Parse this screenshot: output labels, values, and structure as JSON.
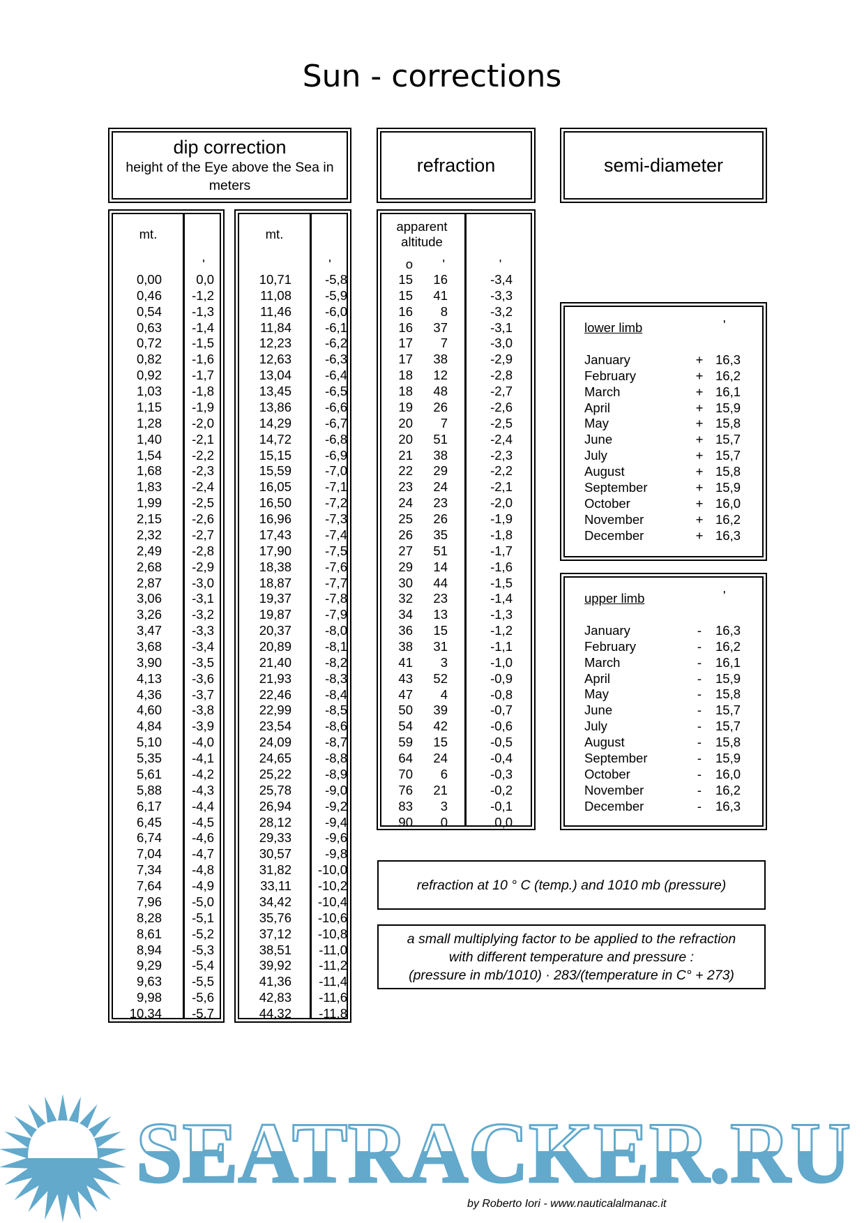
{
  "title": "Sun - corrections",
  "dip": {
    "heading": "dip correction",
    "subheading": "height of the Eye above the Sea in meters",
    "col_mt": "mt.",
    "col_min": "'",
    "left": {
      "mt": [
        "0,00",
        "0,46",
        "0,54",
        "0,63",
        "0,72",
        "0,82",
        "0,92",
        "1,03",
        "1,15",
        "1,28",
        "1,40",
        "1,54",
        "1,68",
        "1,83",
        "1,99",
        "2,15",
        "2,32",
        "2,49",
        "2,68",
        "2,87",
        "3,06",
        "3,26",
        "3,47",
        "3,68",
        "3,90",
        "4,13",
        "4,36",
        "4,60",
        "4,84",
        "5,10",
        "5,35",
        "5,61",
        "5,88",
        "6,17",
        "6,45",
        "6,74",
        "7,04",
        "7,34",
        "7,64",
        "7,96",
        "8,28",
        "8,61",
        "8,94",
        "9,29",
        "9,63",
        "9,98",
        "10,34"
      ],
      "corr": [
        "0,0",
        "-1,2",
        "-1,3",
        "-1,4",
        "-1,5",
        "-1,6",
        "-1,7",
        "-1,8",
        "-1,9",
        "-2,0",
        "-2,1",
        "-2,2",
        "-2,3",
        "-2,4",
        "-2,5",
        "-2,6",
        "-2,7",
        "-2,8",
        "-2,9",
        "-3,0",
        "-3,1",
        "-3,2",
        "-3,3",
        "-3,4",
        "-3,5",
        "-3,6",
        "-3,7",
        "-3,8",
        "-3,9",
        "-4,0",
        "-4,1",
        "-4,2",
        "-4,3",
        "-4,4",
        "-4,5",
        "-4,6",
        "-4,7",
        "-4,8",
        "-4,9",
        "-5,0",
        "-5,1",
        "-5,2",
        "-5,3",
        "-5,4",
        "-5,5",
        "-5,6",
        "-5,7"
      ]
    },
    "right": {
      "mt": [
        "10,71",
        "11,08",
        "11,46",
        "11,84",
        "12,23",
        "12,63",
        "13,04",
        "13,45",
        "13,86",
        "14,29",
        "14,72",
        "15,15",
        "15,59",
        "16,05",
        "16,50",
        "16,96",
        "17,43",
        "17,90",
        "18,38",
        "18,87",
        "19,37",
        "19,87",
        "20,37",
        "20,89",
        "21,40",
        "21,93",
        "22,46",
        "22,99",
        "23,54",
        "24,09",
        "24,65",
        "25,22",
        "25,78",
        "26,94",
        "28,12",
        "29,33",
        "30,57",
        "31,82",
        "33,11",
        "34,42",
        "35,76",
        "37,12",
        "38,51",
        "39,92",
        "41,36",
        "42,83",
        "44,32"
      ],
      "corr": [
        "-5,8",
        "-5,9",
        "-6,0",
        "-6,1",
        "-6,2",
        "-6,3",
        "-6,4",
        "-6,5",
        "-6,6",
        "-6,7",
        "-6,8",
        "-6,9",
        "-7,0",
        "-7,1",
        "-7,2",
        "-7,3",
        "-7,4",
        "-7,5",
        "-7,6",
        "-7,7",
        "-7,8",
        "-7,9",
        "-8,0",
        "-8,1",
        "-8,2",
        "-8,3",
        "-8,4",
        "-8,5",
        "-8,6",
        "-8,7",
        "-8,8",
        "-8,9",
        "-9,0",
        "-9,2",
        "-9,4",
        "-9,6",
        "-9,8",
        "-10,0",
        "-10,2",
        "-10,4",
        "-10,6",
        "-10,8",
        "-11,0",
        "-11,2",
        "-11,4",
        "-11,6",
        "-11,8"
      ]
    }
  },
  "refraction": {
    "heading": "refraction",
    "col_altitude": "apparent altitude",
    "deg_symbol": "o",
    "min_symbol": "'",
    "corr_symbol": "'",
    "deg": [
      "15",
      "15",
      "16",
      "16",
      "17",
      "17",
      "18",
      "18",
      "19",
      "20",
      "20",
      "21",
      "22",
      "23",
      "24",
      "25",
      "26",
      "27",
      "29",
      "30",
      "32",
      "34",
      "36",
      "38",
      "41",
      "43",
      "47",
      "50",
      "54",
      "59",
      "64",
      "70",
      "76",
      "83",
      "90"
    ],
    "min": [
      "16",
      "41",
      "8",
      "37",
      "7",
      "38",
      "12",
      "48",
      "26",
      "7",
      "51",
      "38",
      "29",
      "24",
      "23",
      "26",
      "35",
      "51",
      "14",
      "44",
      "23",
      "13",
      "15",
      "31",
      "3",
      "52",
      "4",
      "39",
      "42",
      "15",
      "24",
      "6",
      "21",
      "3",
      "0"
    ],
    "corr": [
      "-3,4",
      "-3,3",
      "-3,2",
      "-3,1",
      "-3,0",
      "-2,9",
      "-2,8",
      "-2,7",
      "-2,6",
      "-2,5",
      "-2,4",
      "-2,3",
      "-2,2",
      "-2,1",
      "-2,0",
      "-1,9",
      "-1,8",
      "-1,7",
      "-1,6",
      "-1,5",
      "-1,4",
      "-1,3",
      "-1,2",
      "-1,1",
      "-1,0",
      "-0,9",
      "-0,8",
      "-0,7",
      "-0,6",
      "-0,5",
      "-0,4",
      "-0,3",
      "-0,2",
      "-0,1",
      "0,0"
    ],
    "note": "refraction at 10 ° C (temp.) and 1010 mb (pressure)",
    "factor_note": [
      "a small multiplying factor to be applied to the refraction",
      "with different temperature and pressure :",
      "(pressure in mb/1010) · 283/(temperature in C° + 273)"
    ]
  },
  "semi_diameter": {
    "heading": "semi-diameter",
    "lower": {
      "label": "lower limb",
      "unit": "'",
      "sign": "+",
      "months": [
        "January",
        "February",
        "March",
        "April",
        "May",
        "June",
        "July",
        "August",
        "September",
        "October",
        "November",
        "December"
      ],
      "values": [
        "16,3",
        "16,2",
        "16,1",
        "15,9",
        "15,8",
        "15,7",
        "15,7",
        "15,8",
        "15,9",
        "16,0",
        "16,2",
        "16,3"
      ]
    },
    "upper": {
      "label": "upper limb",
      "unit": "'",
      "sign": "-",
      "months": [
        "January",
        "February",
        "March",
        "April",
        "May",
        "June",
        "July",
        "August",
        "September",
        "October",
        "November",
        "December"
      ],
      "values": [
        "16,3",
        "16,2",
        "16,1",
        "15,9",
        "15,8",
        "15,7",
        "15,7",
        "15,8",
        "15,9",
        "16,0",
        "16,2",
        "16,3"
      ]
    }
  },
  "footer": {
    "logo_text": "SEATRACKER.RU",
    "credit": "by Roberto Iori - www.nauticalalmanac.it",
    "logo_color": "#62a9cc"
  }
}
